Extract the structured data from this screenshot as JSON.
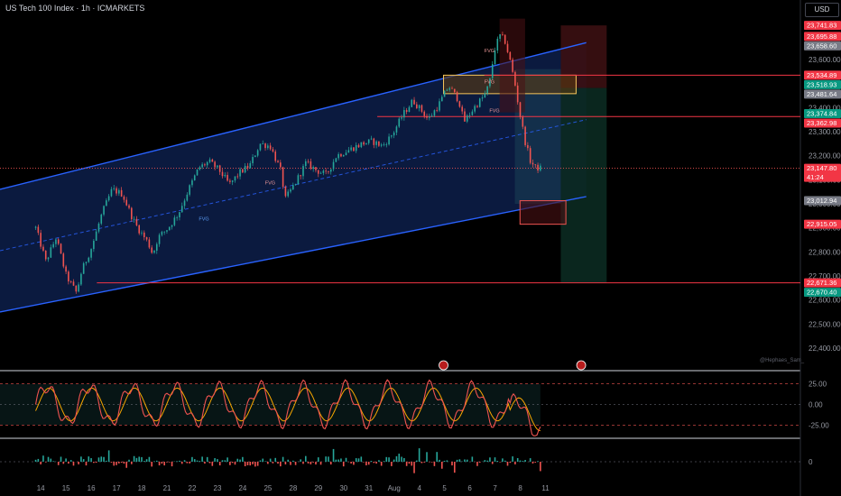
{
  "header": {
    "title": "US Tech 100 Index · 1h · ICMARKETS",
    "currency": "USD",
    "watermark": "@Hephaes_Sam_"
  },
  "colors": {
    "bull": "#26a69a",
    "bear": "#ef5350",
    "channel": "#2962ff",
    "channel_fill": "#0d1f4a",
    "stop_zone": "#3b0f12",
    "target_zone": "#0b2a21",
    "resistance": "#f23645",
    "oscillator": "#f7a600"
  },
  "chart_data": [
    {
      "type": "candlestick",
      "title": "US Tech 100 Index · 1h · ICMARKETS",
      "ylim": [
        22310,
        23780
      ],
      "x_dates": [
        "14",
        "15",
        "16",
        "17",
        "18",
        "21",
        "22",
        "23",
        "24",
        "25",
        "28",
        "29",
        "30",
        "31",
        "Aug",
        "4",
        "5",
        "6",
        "7",
        "8",
        "11"
      ],
      "y_ticks": [
        22400,
        22500,
        22600,
        22700,
        22800,
        22900,
        23000,
        23100,
        23200,
        23300,
        23400,
        23500,
        23600
      ],
      "y_tick_labels": [
        "22,400.00",
        "22,500.00",
        "22,600.00",
        "22,700.00",
        "22,800.00",
        "22,900.00",
        "23,000.00",
        "23,100.00",
        "23,200.00",
        "23,300.00",
        "23,400.00",
        "23,500.00",
        "23,600.00"
      ],
      "path": [
        [
          0,
          22900
        ],
        [
          2,
          22760
        ],
        [
          4,
          22860
        ],
        [
          6,
          22700
        ],
        [
          8,
          22630
        ],
        [
          9,
          22720
        ],
        [
          11,
          22820
        ],
        [
          13,
          22960
        ],
        [
          15,
          23060
        ],
        [
          17,
          23040
        ],
        [
          19,
          22940
        ],
        [
          20,
          22900
        ],
        [
          22,
          22840
        ],
        [
          23,
          22790
        ],
        [
          24,
          22860
        ],
        [
          26,
          22900
        ],
        [
          28,
          22960
        ],
        [
          30,
          23060
        ],
        [
          32,
          23150
        ],
        [
          34,
          23175
        ],
        [
          36,
          23140
        ],
        [
          38,
          23080
        ],
        [
          40,
          23130
        ],
        [
          42,
          23160
        ],
        [
          44,
          23250
        ],
        [
          46,
          23240
        ],
        [
          48,
          23140
        ],
        [
          49,
          23020
        ],
        [
          51,
          23090
        ],
        [
          53,
          23170
        ],
        [
          55,
          23140
        ],
        [
          57,
          23120
        ],
        [
          59,
          23200
        ],
        [
          62,
          23230
        ],
        [
          64,
          23250
        ],
        [
          66,
          23260
        ],
        [
          68,
          23240
        ],
        [
          70,
          23290
        ],
        [
          72,
          23370
        ],
        [
          74,
          23430
        ],
        [
          76,
          23380
        ],
        [
          77,
          23350
        ],
        [
          79,
          23410
        ],
        [
          81,
          23490
        ],
        [
          83,
          23430
        ],
        [
          84,
          23340
        ],
        [
          86,
          23400
        ],
        [
          88,
          23450
        ],
        [
          89,
          23500
        ],
        [
          90,
          23640
        ],
        [
          91,
          23700
        ],
        [
          92,
          23680
        ],
        [
          93,
          23600
        ],
        [
          94,
          23500
        ],
        [
          95,
          23370
        ],
        [
          96,
          23260
        ],
        [
          97,
          23180
        ],
        [
          98,
          23150
        ],
        [
          99,
          23147.8
        ]
      ],
      "x_range": [
        -7,
        150
      ],
      "price_tags": [
        {
          "value": 23741.83,
          "label": "23,741.83",
          "color": "#f23645"
        },
        {
          "value": 23695.88,
          "label": "23,695.88",
          "color": "#f23645"
        },
        {
          "value": 23658.6,
          "label": "23,658.60",
          "color": "#787b86"
        },
        {
          "value": 23518.93,
          "label": "23,518.93",
          "color": "#089981"
        },
        {
          "value": 23534.89,
          "label": "23,534.89",
          "color": "#f23645"
        },
        {
          "value": 23481.64,
          "label": "23,481.64",
          "color": "#787b86"
        },
        {
          "value": 23374.84,
          "label": "23,374.84",
          "color": "#089981"
        },
        {
          "value": 23362.98,
          "label": "23,362.98",
          "color": "#f23645"
        },
        {
          "value": 23147.8,
          "label": "23,147.80",
          "sub": "41:24",
          "color": "#f23645"
        },
        {
          "value": 23012.94,
          "label": "23,012.94",
          "color": "#787b86"
        },
        {
          "value": 22915.05,
          "label": "22,915.05",
          "color": "#f23645"
        },
        {
          "value": 22671.36,
          "label": "22,671.36",
          "color": "#f23645"
        },
        {
          "value": 22670.4,
          "label": "22,670.40",
          "color": "#089981"
        }
      ],
      "horizontal_lines": [
        {
          "value": 23534.89,
          "from_x": 88
        },
        {
          "value": 23362.98,
          "from_x": 67
        },
        {
          "value": 22671.36,
          "from_x": 12
        }
      ],
      "channel": {
        "upper": [
          [
            -7,
            23060
          ],
          [
            108,
            23670
          ]
        ],
        "lower": [
          [
            -7,
            22550
          ],
          [
            108,
            23030
          ]
        ],
        "mid": [
          [
            -7,
            22805
          ],
          [
            108,
            23350
          ]
        ]
      },
      "annotations": [
        "FVG",
        "FVG",
        "FVG",
        "FVG",
        "FVG"
      ],
      "position_tool": {
        "stop": [
          23741.83,
          23481.64
        ],
        "target": [
          23481.64,
          22670.4
        ]
      },
      "orderblocks": [
        {
          "range": [
            23534.89,
            23458
          ],
          "x": [
            80,
            106
          ]
        },
        {
          "range": [
            23012.94,
            22915.05
          ],
          "x": [
            95,
            104
          ]
        }
      ]
    },
    {
      "type": "line",
      "ylim": [
        -40,
        40
      ],
      "y_ticks": [
        25,
        0,
        -25
      ],
      "y_tick_labels": [
        "25.00",
        "0.00",
        "-25.00"
      ],
      "series": [
        {
          "values": []
        }
      ]
    },
    {
      "type": "bar",
      "y_ticks": [
        0
      ],
      "y_tick_labels": [
        "0"
      ],
      "series": [
        {
          "values": []
        }
      ]
    }
  ]
}
